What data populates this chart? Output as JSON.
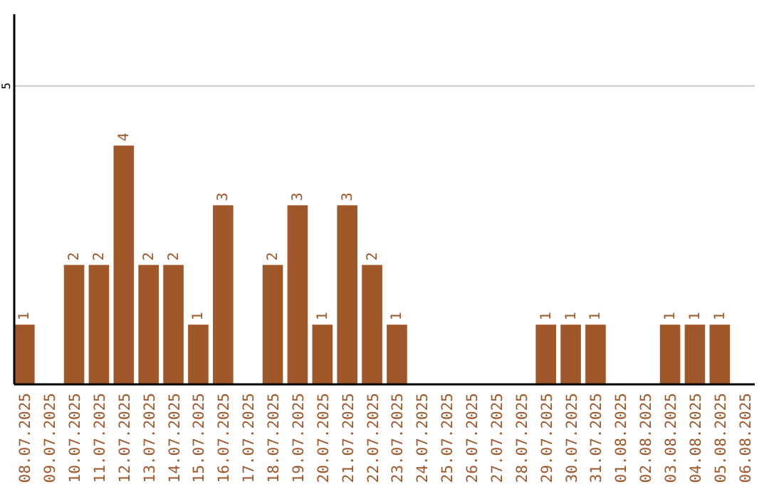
{
  "chart_data": {
    "type": "bar",
    "categories": [
      "08.07.2025",
      "09.07.2025",
      "10.07.2025",
      "11.07.2025",
      "12.07.2025",
      "13.07.2025",
      "14.07.2025",
      "15.07.2025",
      "16.07.2025",
      "17.07.2025",
      "18.07.2025",
      "19.07.2025",
      "20.07.2025",
      "21.07.2025",
      "22.07.2025",
      "23.07.2025",
      "24.07.2025",
      "25.07.2025",
      "26.07.2025",
      "27.07.2025",
      "28.07.2025",
      "29.07.2025",
      "30.07.2025",
      "31.07.2025",
      "01.08.2025",
      "02.08.2025",
      "03.08.2025",
      "04.08.2025",
      "05.08.2025",
      "06.08.2025"
    ],
    "values": [
      1,
      0,
      2,
      2,
      4,
      2,
      2,
      1,
      3,
      0,
      2,
      3,
      1,
      3,
      2,
      1,
      0,
      0,
      0,
      0,
      0,
      1,
      1,
      1,
      0,
      0,
      1,
      1,
      1,
      0
    ],
    "value_labels": [
      "1",
      null,
      "2",
      "2",
      "4",
      "2",
      "2",
      "1",
      "3",
      null,
      "2",
      "3",
      "1",
      "3",
      "2",
      "1",
      null,
      null,
      null,
      null,
      null,
      "1",
      "1",
      "1",
      null,
      null,
      "1",
      "1",
      "1",
      null
    ],
    "color": "#a0572a",
    "ylim": [
      0,
      6.2
    ],
    "yticks": [
      5
    ],
    "grid": "y"
  }
}
